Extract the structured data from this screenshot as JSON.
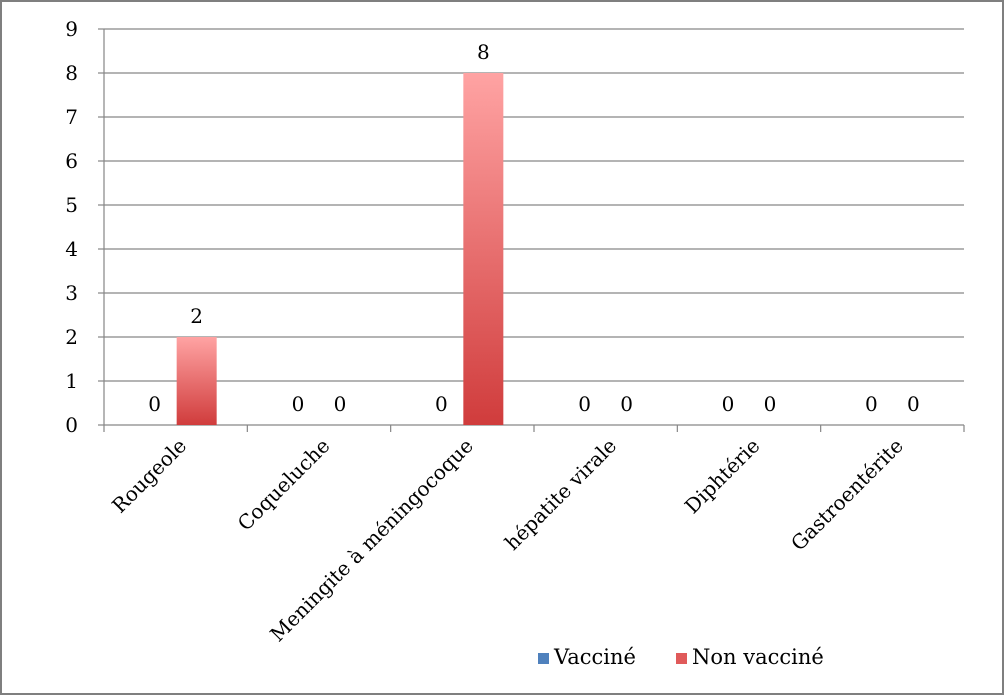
{
  "chart_data": {
    "type": "bar",
    "title": "",
    "xlabel": "",
    "ylabel": "",
    "categories": [
      "Rougeole",
      "Coqueluche",
      "Meningite à méningocoque",
      "hépatite virale",
      "Diphtérie",
      "Gastroentérite"
    ],
    "series": [
      {
        "name": "Vacciné",
        "values": [
          0,
          0,
          0,
          0,
          0,
          0
        ],
        "color": "#4f81bd"
      },
      {
        "name": "Non vacciné",
        "values": [
          2,
          0,
          8,
          0,
          0,
          0
        ],
        "color": "#e05a5a"
      }
    ],
    "ylim": [
      0,
      9
    ],
    "yticks": [
      "0",
      "1",
      "2",
      "3",
      "4",
      "5",
      "6",
      "7",
      "8",
      "9"
    ],
    "grid": true,
    "legend_position": "bottom-right",
    "data_labels": true
  }
}
